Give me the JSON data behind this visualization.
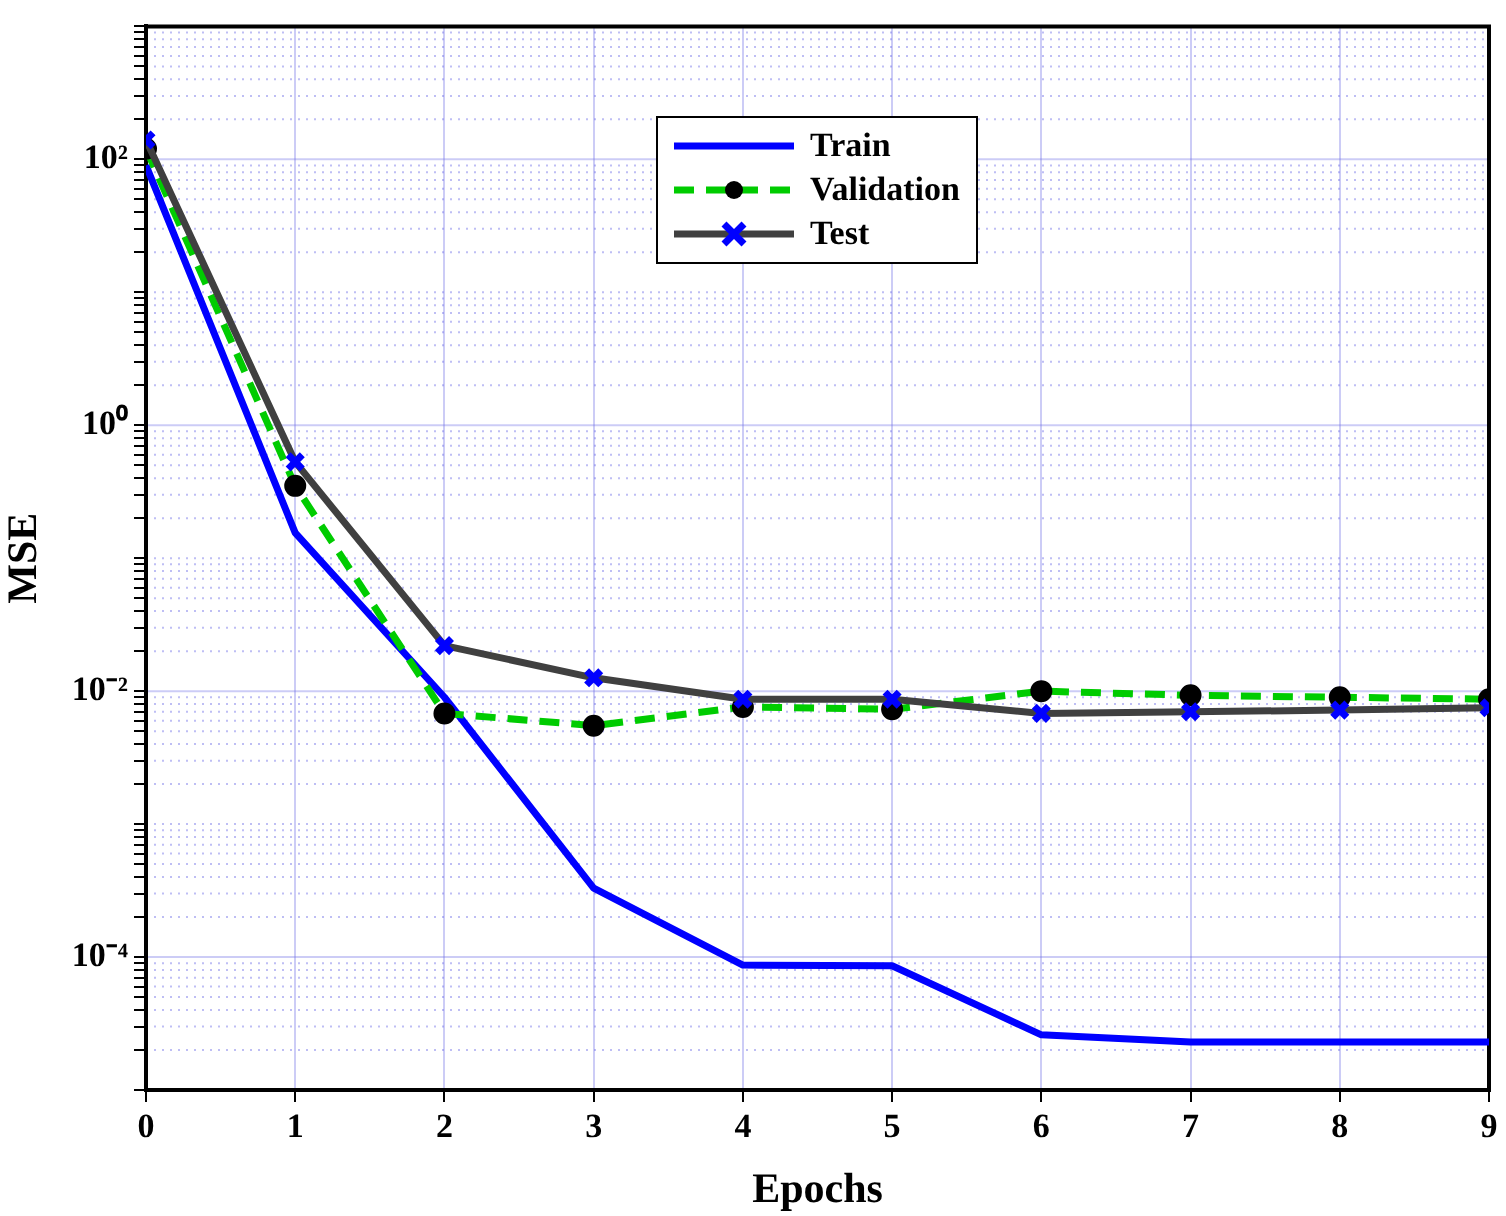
{
  "chart_data": {
    "type": "line",
    "xlabel": "Epochs",
    "ylabel": "MSE",
    "x": [
      0,
      1,
      2,
      3,
      4,
      5,
      6,
      7,
      8,
      9
    ],
    "series": [
      {
        "name": "Train",
        "color": "#0000ff",
        "line_style": "solid",
        "marker": "none",
        "values": [
          90,
          0.155,
          0.009,
          0.00033,
          8.7e-05,
          8.6e-05,
          2.6e-05,
          2.3e-05,
          2.3e-05,
          2.3e-05
        ]
      },
      {
        "name": "Validation",
        "color": "#00cc00",
        "line_style": "dashed",
        "marker": "circle",
        "values": [
          120,
          0.35,
          0.0068,
          0.0055,
          0.0076,
          0.0073,
          0.01,
          0.0093,
          0.009,
          0.0087
        ]
      },
      {
        "name": "Test",
        "color": "#404040",
        "line_style": "solid",
        "marker": "cross",
        "values": [
          140,
          0.53,
          0.022,
          0.0126,
          0.0087,
          0.0087,
          0.0068,
          0.007,
          0.0072,
          0.0075
        ]
      }
    ],
    "log": "y",
    "xlim": [
      0,
      9
    ],
    "xticks": [
      0,
      1,
      2,
      3,
      4,
      5,
      6,
      7,
      8,
      9
    ],
    "ylim": [
      1e-05,
      1000
    ],
    "yticks": [
      {
        "value": 1e-05,
        "label": null
      },
      {
        "value": 2e-05,
        "label": null
      },
      {
        "value": 3e-05,
        "label": null
      },
      {
        "value": 4e-05,
        "label": null
      },
      {
        "value": 5e-05,
        "label": null
      },
      {
        "value": 6e-05,
        "label": null
      },
      {
        "value": 7e-05,
        "label": null
      },
      {
        "value": 8e-05,
        "label": null
      },
      {
        "value": 9e-05,
        "label": null
      },
      {
        "value": 0.0001,
        "label": "10⁻⁴"
      },
      {
        "value": 0.0002,
        "label": null
      },
      {
        "value": 0.0003,
        "label": null
      },
      {
        "value": 0.0004,
        "label": null
      },
      {
        "value": 0.0005,
        "label": null
      },
      {
        "value": 0.0006,
        "label": null
      },
      {
        "value": 0.0007,
        "label": null
      },
      {
        "value": 0.0008,
        "label": null
      },
      {
        "value": 0.0009,
        "label": null
      },
      {
        "value": 0.001,
        "label": null
      },
      {
        "value": 0.002,
        "label": null
      },
      {
        "value": 0.003,
        "label": null
      },
      {
        "value": 0.004,
        "label": null
      },
      {
        "value": 0.005,
        "label": null
      },
      {
        "value": 0.006,
        "label": null
      },
      {
        "value": 0.007,
        "label": null
      },
      {
        "value": 0.008,
        "label": null
      },
      {
        "value": 0.009,
        "label": null
      },
      {
        "value": 0.01,
        "label": "10⁻²"
      },
      {
        "value": 0.02,
        "label": null
      },
      {
        "value": 0.03,
        "label": null
      },
      {
        "value": 0.04,
        "label": null
      },
      {
        "value": 0.05,
        "label": null
      },
      {
        "value": 0.06,
        "label": null
      },
      {
        "value": 0.07,
        "label": null
      },
      {
        "value": 0.08,
        "label": null
      },
      {
        "value": 0.09,
        "label": null
      },
      {
        "value": 0.1,
        "label": null
      },
      {
        "value": 0.2,
        "label": null
      },
      {
        "value": 0.3,
        "label": null
      },
      {
        "value": 0.4,
        "label": null
      },
      {
        "value": 0.5,
        "label": null
      },
      {
        "value": 0.6,
        "label": null
      },
      {
        "value": 0.7,
        "label": null
      },
      {
        "value": 0.8,
        "label": null
      },
      {
        "value": 0.9,
        "label": null
      },
      {
        "value": 1,
        "label": "10⁰"
      },
      {
        "value": 2,
        "label": null
      },
      {
        "value": 3,
        "label": null
      },
      {
        "value": 4,
        "label": null
      },
      {
        "value": 5,
        "label": null
      },
      {
        "value": 6,
        "label": null
      },
      {
        "value": 7,
        "label": null
      },
      {
        "value": 8,
        "label": null
      },
      {
        "value": 9,
        "label": null
      },
      {
        "value": 10,
        "label": null
      },
      {
        "value": 20,
        "label": null
      },
      {
        "value": 30,
        "label": null
      },
      {
        "value": 40,
        "label": null
      },
      {
        "value": 50,
        "label": null
      },
      {
        "value": 60,
        "label": null
      },
      {
        "value": 70,
        "label": null
      },
      {
        "value": 80,
        "label": null
      },
      {
        "value": 90,
        "label": null
      },
      {
        "value": 100,
        "label": "10²"
      },
      {
        "value": 200,
        "label": null
      },
      {
        "value": 300,
        "label": null
      },
      {
        "value": 400,
        "label": null
      },
      {
        "value": 500,
        "label": null
      },
      {
        "value": 600,
        "label": null
      },
      {
        "value": 700,
        "label": null
      },
      {
        "value": 800,
        "label": null
      },
      {
        "value": 900,
        "label": null
      },
      {
        "value": 1000,
        "label": null
      }
    ],
    "grid": true,
    "legend": "top"
  }
}
